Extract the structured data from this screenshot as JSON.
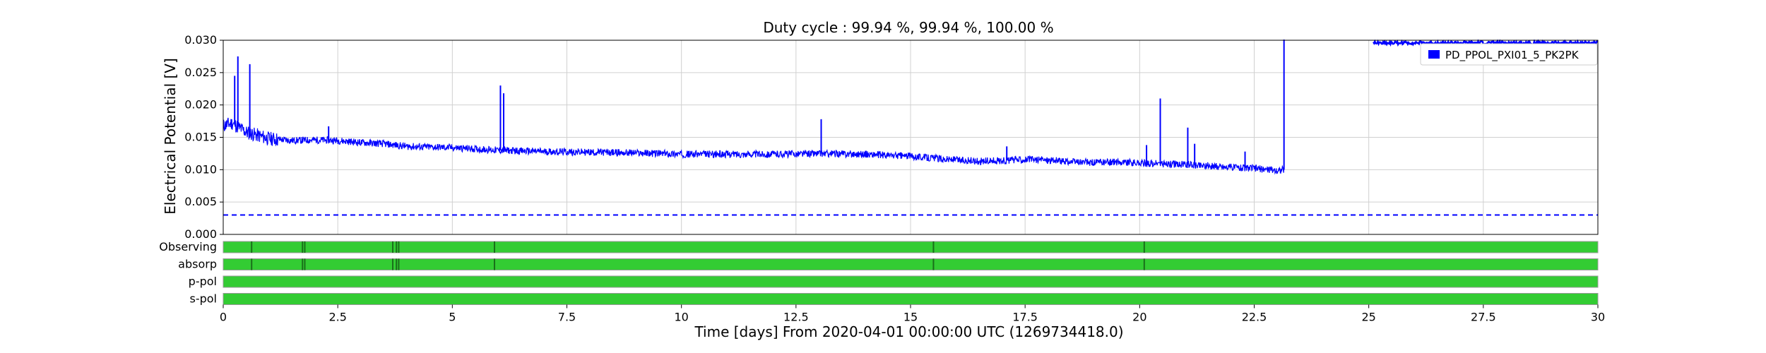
{
  "chart_data": {
    "type": "line",
    "title": "Duty cycle : 99.94 %, 99.94 %, 100.00 %",
    "xlabel": "Time [days] From 2020-04-01 00:00:00 UTC (1269734418.0)",
    "ylabel": "Electrical Potential [V]",
    "xlim": [
      0,
      30
    ],
    "ylim": [
      0,
      0.03
    ],
    "x_ticks": [
      "0",
      "2.5",
      "5",
      "7.5",
      "10",
      "12.5",
      "15",
      "17.5",
      "20",
      "22.5",
      "25",
      "27.5",
      "30"
    ],
    "y_ticks": [
      "0.000",
      "0.005",
      "0.010",
      "0.015",
      "0.020",
      "0.025",
      "0.030"
    ],
    "grid": true,
    "legend_position": "top-right",
    "series": [
      {
        "name": "PD_PPOL_PXI01_5_PK2PK",
        "color": "#0000ff",
        "style": "solid",
        "x": [
          0,
          0.2,
          0.5,
          1,
          1.5,
          2,
          2.5,
          3,
          3.5,
          4,
          5,
          6,
          7,
          8,
          9,
          10,
          11,
          12,
          13,
          14,
          14.5,
          15,
          15.5,
          16,
          16.5,
          17,
          17.5,
          18,
          18.5,
          19,
          19.5,
          20,
          20.5,
          21,
          21.5,
          22,
          22.5,
          23,
          23.15
        ],
        "y": [
          0.0168,
          0.0172,
          0.0158,
          0.0148,
          0.0145,
          0.0146,
          0.0145,
          0.0142,
          0.014,
          0.0136,
          0.0134,
          0.013,
          0.0128,
          0.0127,
          0.0126,
          0.0124,
          0.0124,
          0.0124,
          0.0125,
          0.0124,
          0.0122,
          0.0121,
          0.0118,
          0.0115,
          0.0113,
          0.0114,
          0.0116,
          0.0115,
          0.0112,
          0.0111,
          0.0112,
          0.011,
          0.0109,
          0.0108,
          0.0106,
          0.0104,
          0.0102,
          0.0099,
          0.01
        ],
        "spikes": [
          {
            "x": 0.25,
            "y": 0.0245
          },
          {
            "x": 0.32,
            "y": 0.0275
          },
          {
            "x": 0.58,
            "y": 0.0263
          },
          {
            "x": 2.3,
            "y": 0.0167
          },
          {
            "x": 6.05,
            "y": 0.023
          },
          {
            "x": 6.12,
            "y": 0.0218
          },
          {
            "x": 13.05,
            "y": 0.0178
          },
          {
            "x": 17.1,
            "y": 0.0136
          },
          {
            "x": 20.15,
            "y": 0.0138
          },
          {
            "x": 20.45,
            "y": 0.021
          },
          {
            "x": 21.05,
            "y": 0.0165
          },
          {
            "x": 21.2,
            "y": 0.014
          },
          {
            "x": 22.3,
            "y": 0.0128
          }
        ],
        "jump": {
          "x": 23.15,
          "to": 0.03
        },
        "late_segment": {
          "x": [
            25.1,
            30
          ],
          "y": 0.0296
        }
      },
      {
        "color": "#0000ff",
        "style": "dashed",
        "x": [
          0,
          30
        ],
        "y": [
          0.003,
          0.003
        ]
      }
    ],
    "segments": [
      {
        "label": "Observing",
        "active_color": "#33cc33",
        "gaps": [
          0.62,
          1.73,
          1.78,
          3.7,
          3.78,
          3.83,
          5.92,
          15.5,
          20.1
        ]
      },
      {
        "label": "absorp",
        "active_color": "#33cc33",
        "gaps": [
          0.62,
          1.73,
          1.78,
          3.7,
          3.78,
          3.83,
          5.92,
          15.5,
          20.1
        ]
      },
      {
        "label": "p-pol",
        "active_color": "#33cc33",
        "gaps": []
      },
      {
        "label": "s-pol",
        "active_color": "#33cc33",
        "gaps": []
      }
    ]
  }
}
